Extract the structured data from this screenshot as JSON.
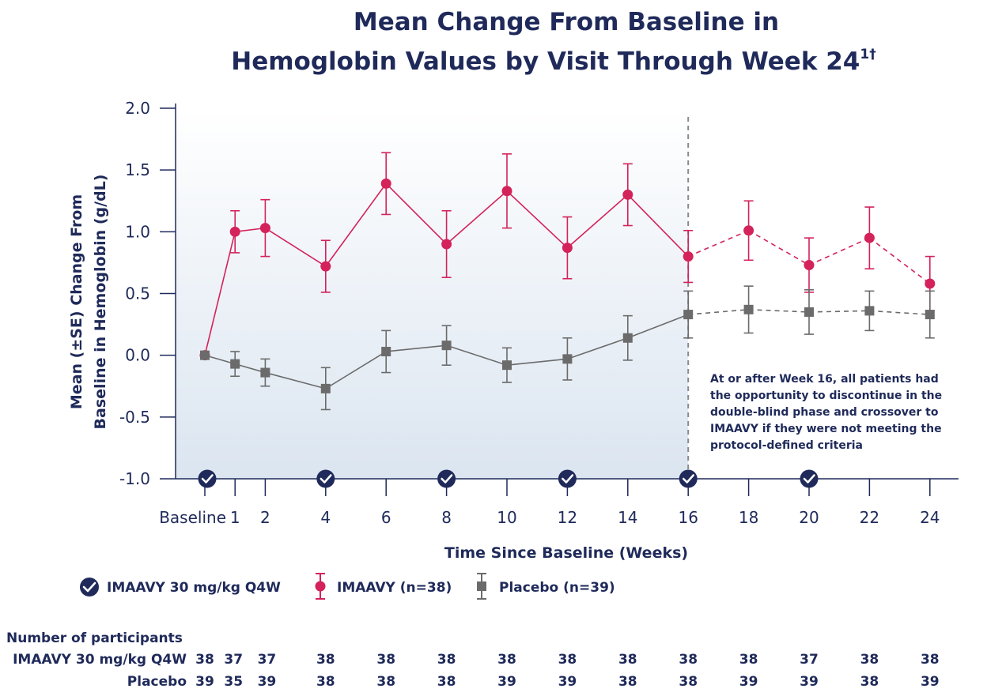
{
  "colors": {
    "imaavy": "#d4225a",
    "placebo": "#6b6b6b",
    "navy": "#1f2a5a",
    "dose_marker": "#1f2a5a",
    "shade_top": "#ffffff",
    "shade_bottom": "#dbe5f0"
  },
  "chart_data": {
    "type": "line",
    "title": [
      "Mean Change From Baseline in",
      "Hemoglobin Values by Visit Through Week 24"
    ],
    "title_superscript": "1†",
    "xlabel": "Time Since Baseline (Weeks)",
    "ylabel": [
      "Mean (±SE) Change From",
      "Baseline in Hemoglobin (g/dL)"
    ],
    "ylim": [
      -1.0,
      2.0
    ],
    "yticks": [
      "2.0",
      "1.5",
      "1.0",
      "0.5",
      "0.0",
      "-0.5",
      "-1.0"
    ],
    "ytick_values": [
      2.0,
      1.5,
      1.0,
      0.5,
      0.0,
      -0.5,
      -1.0
    ],
    "x_weeks": [
      0,
      1,
      2,
      4,
      6,
      8,
      10,
      12,
      14,
      16,
      18,
      20,
      22,
      24
    ],
    "xtick_labels": [
      "Baseline",
      "1",
      "2",
      "4",
      "6",
      "8",
      "10",
      "12",
      "14",
      "16",
      "18",
      "20",
      "22",
      "24"
    ],
    "double_blind_end_week": 16,
    "dose_weeks": [
      0,
      4,
      8,
      12,
      16,
      20
    ],
    "series": [
      {
        "name": "IMAAVY (n=38)",
        "color_key": "imaavy",
        "marker": "circle",
        "values": [
          0.0,
          1.0,
          1.03,
          0.72,
          1.39,
          0.9,
          1.33,
          0.87,
          1.3,
          0.8,
          1.01,
          0.73,
          0.95,
          0.58
        ],
        "se": [
          0.0,
          0.17,
          0.23,
          0.21,
          0.25,
          0.27,
          0.3,
          0.25,
          0.25,
          0.21,
          0.24,
          0.22,
          0.25,
          0.22
        ]
      },
      {
        "name": "Placebo (n=39)",
        "color_key": "placebo",
        "marker": "square",
        "values": [
          0.0,
          -0.07,
          -0.14,
          -0.27,
          0.03,
          0.08,
          -0.08,
          -0.03,
          0.14,
          0.33,
          0.37,
          0.35,
          0.36,
          0.33
        ],
        "se": [
          0.0,
          0.1,
          0.11,
          0.17,
          0.17,
          0.16,
          0.14,
          0.17,
          0.18,
          0.19,
          0.19,
          0.18,
          0.16,
          0.19
        ]
      }
    ],
    "annotation": [
      "At or after Week 16, all patients had",
      "the opportunity to discontinue in the",
      "double-blind phase and crossover to",
      "IMAAVY if they were not meeting the",
      "protocol-defined criteria"
    ],
    "legend": {
      "dose": "IMAAVY 30 mg/kg Q4W",
      "imaavy": "IMAAVY (n=38)",
      "placebo": "Placebo (n=39)"
    }
  },
  "participants": {
    "header": "Number of participants",
    "rows": [
      {
        "label": "IMAAVY 30 mg/kg Q4W",
        "values": [
          "38",
          "37",
          "37",
          "38",
          "38",
          "38",
          "38",
          "38",
          "38",
          "38",
          "38",
          "37",
          "38",
          "38"
        ]
      },
      {
        "label": "Placebo",
        "values": [
          "39",
          "35",
          "39",
          "38",
          "38",
          "38",
          "39",
          "39",
          "38",
          "38",
          "39",
          "39",
          "38",
          "39"
        ]
      }
    ]
  }
}
